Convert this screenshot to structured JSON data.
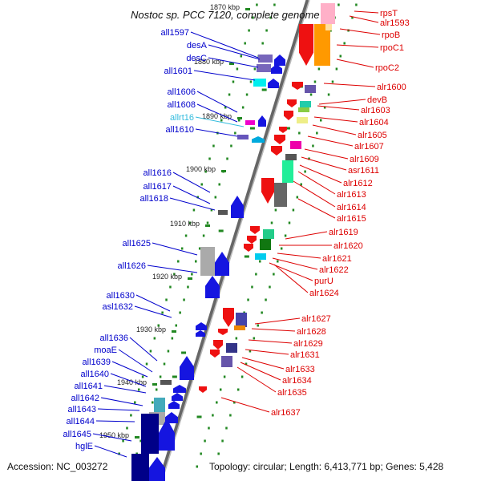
{
  "title": "Nostoc sp. PCC 7120, complete genome",
  "footer": {
    "accession": "Accession: NC_003272",
    "summary": "Topology: circular; Length: 6,413,771 bp; Genes: 5,428"
  },
  "colors": {
    "left_strand": "#0000cc",
    "right_strand": "#dd0000",
    "rna": "#33bbdd",
    "backbone": "#888888",
    "tick": "#228822"
  },
  "kbp_ticks": [
    {
      "text": "1870 kbp"
    },
    {
      "text": "1880 kbp"
    },
    {
      "text": "1890 kbp"
    },
    {
      "text": "1900 kbp"
    },
    {
      "text": "1910 kbp"
    },
    {
      "text": "1920 kbp"
    },
    {
      "text": "1930 kbp"
    },
    {
      "text": "1940 kbp"
    },
    {
      "text": "1950 kbp"
    }
  ],
  "left_genes": [
    {
      "label": "all1597"
    },
    {
      "label": "desA"
    },
    {
      "label": "desC"
    },
    {
      "label": "all1601"
    },
    {
      "label": "all1606"
    },
    {
      "label": "all1608"
    },
    {
      "label": "allrt16"
    },
    {
      "label": "all1610"
    },
    {
      "label": "all1616"
    },
    {
      "label": "all1617"
    },
    {
      "label": "all1618"
    },
    {
      "label": "all1625"
    },
    {
      "label": "all1626"
    },
    {
      "label": "all1630"
    },
    {
      "label": "asl1632"
    },
    {
      "label": "all1636"
    },
    {
      "label": "moaE"
    },
    {
      "label": "all1639"
    },
    {
      "label": "all1640"
    },
    {
      "label": "all1641"
    },
    {
      "label": "all1642"
    },
    {
      "label": "all1643"
    },
    {
      "label": "all1644"
    },
    {
      "label": "all1645"
    },
    {
      "label": "hglE"
    }
  ],
  "right_genes": [
    {
      "label": "rpsT"
    },
    {
      "label": "alr1593"
    },
    {
      "label": "rpoB"
    },
    {
      "label": "rpoC1"
    },
    {
      "label": "rpoC2"
    },
    {
      "label": "alr1600"
    },
    {
      "label": "devB"
    },
    {
      "label": "alr1603"
    },
    {
      "label": "alr1604"
    },
    {
      "label": "alr1605"
    },
    {
      "label": "alr1607"
    },
    {
      "label": "alr1609"
    },
    {
      "label": "asr1611"
    },
    {
      "label": "alr1612"
    },
    {
      "label": "alr1613"
    },
    {
      "label": "alr1614"
    },
    {
      "label": "alr1615"
    },
    {
      "label": "alr1619"
    },
    {
      "label": "alr1620"
    },
    {
      "label": "alr1621"
    },
    {
      "label": "alr1622"
    },
    {
      "label": "purU"
    },
    {
      "label": "alr1624"
    },
    {
      "label": "alr1627"
    },
    {
      "label": "alr1628"
    },
    {
      "label": "alr1629"
    },
    {
      "label": "alr1631"
    },
    {
      "label": "alr1633"
    },
    {
      "label": "alr1634"
    },
    {
      "label": "alr1635"
    },
    {
      "label": "alr1637"
    }
  ]
}
